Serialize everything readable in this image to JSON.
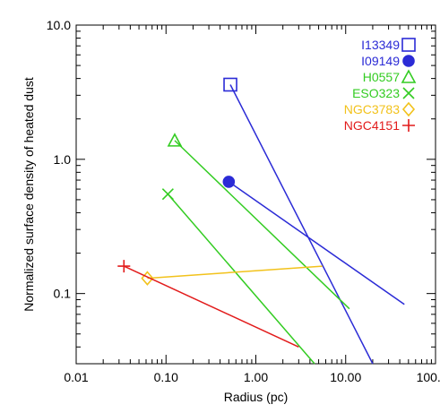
{
  "chart_data": {
    "type": "line",
    "title": "",
    "xlabel": "Radius (pc)",
    "ylabel": "Normalized surface density of heated dust",
    "xscale": "log",
    "yscale": "log",
    "xlim": [
      0.01,
      100.0
    ],
    "ylim": [
      0.03,
      10.0
    ],
    "xticks": [
      "0.01",
      "0.10",
      "1.00",
      "10.00",
      "100.00"
    ],
    "yticks": [
      "0.1",
      "1.0",
      "10.0"
    ],
    "legend_position": "top-right",
    "grid": false,
    "series": [
      {
        "name": "I13349",
        "color": "#2b2bd6",
        "marker": "square-open",
        "x": [
          0.52,
          20.0
        ],
        "y": [
          3.6,
          0.03
        ]
      },
      {
        "name": "I09149",
        "color": "#2b2bd6",
        "marker": "circle-filled",
        "x": [
          0.5,
          45.0
        ],
        "y": [
          0.68,
          0.083
        ]
      },
      {
        "name": "H0557",
        "color": "#33cc22",
        "marker": "triangle-open",
        "x": [
          0.125,
          11.0
        ],
        "y": [
          1.38,
          0.077
        ]
      },
      {
        "name": "ESO323",
        "color": "#33cc22",
        "marker": "x",
        "x": [
          0.105,
          4.5
        ],
        "y": [
          0.55,
          0.03
        ]
      },
      {
        "name": "NGC3783",
        "color": "#f2c21b",
        "marker": "diamond-open",
        "x": [
          0.062,
          5.5
        ],
        "y": [
          0.13,
          0.16
        ]
      },
      {
        "name": "NGC4151",
        "color": "#e21b1b",
        "marker": "plus",
        "x": [
          0.034,
          3.0
        ],
        "y": [
          0.16,
          0.04
        ]
      }
    ]
  }
}
